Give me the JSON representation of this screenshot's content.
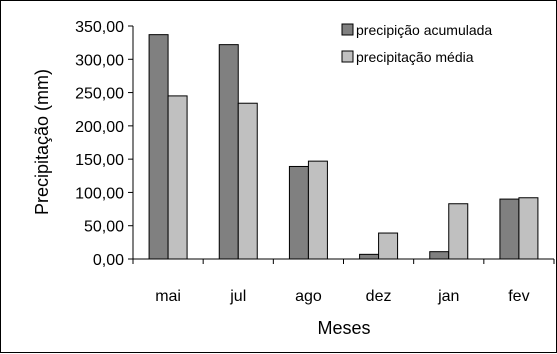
{
  "chart_data": {
    "type": "bar",
    "title": "",
    "xlabel": "Meses",
    "ylabel": "Precipitação (mm)",
    "ylim": [
      0,
      350
    ],
    "yticks": [
      "0,00",
      "50,00",
      "100,00",
      "150,00",
      "200,00",
      "250,00",
      "300,00",
      "350,00"
    ],
    "categories": [
      "mai",
      "jul",
      "ago",
      "dez",
      "jan",
      "fev"
    ],
    "series": [
      {
        "name": "precipição acumulada",
        "color": "#808080",
        "values": [
          337,
          322,
          139,
          7,
          11,
          90
        ]
      },
      {
        "name": "precipitação média",
        "color": "#c0c0c0",
        "values": [
          245,
          234,
          147,
          39,
          83,
          92
        ]
      }
    ],
    "grid": false,
    "legend_position": "top-right"
  }
}
